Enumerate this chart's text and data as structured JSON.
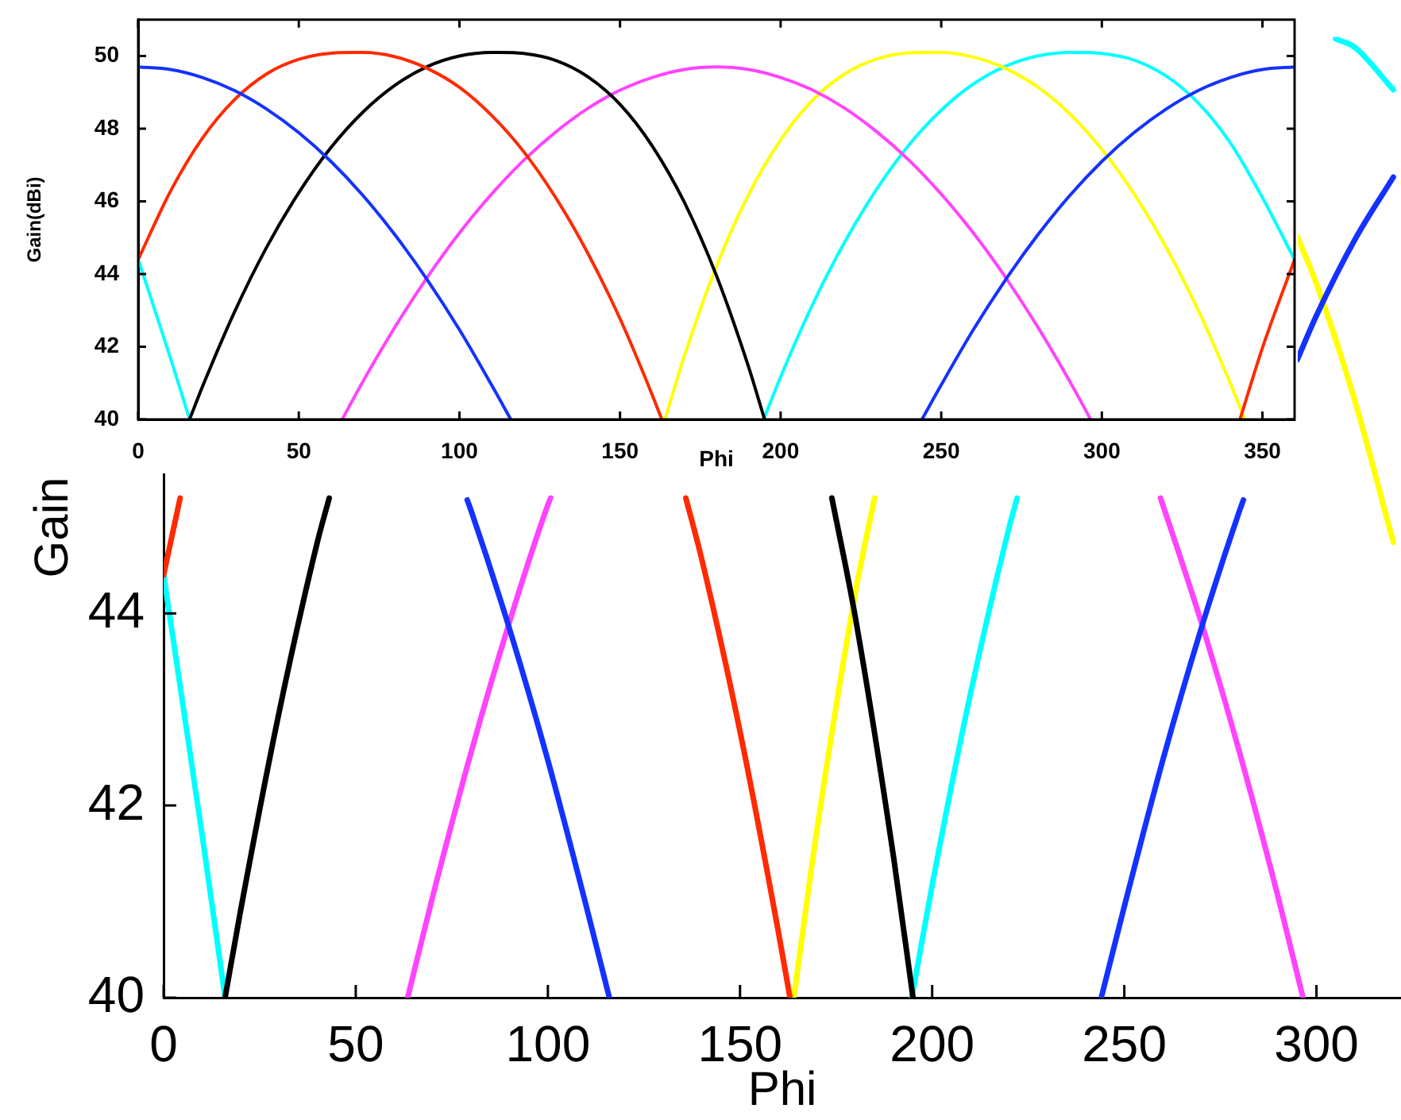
{
  "chart_data": [
    {
      "type": "line",
      "xlabel": "Phi",
      "ylabel": "Gain(dBi)",
      "xlim": [
        0,
        360
      ],
      "ylim": [
        40,
        51
      ],
      "xticks": [
        0,
        50,
        100,
        150,
        200,
        250,
        300,
        350
      ],
      "yticks": [
        40,
        42,
        44,
        46,
        48,
        50
      ],
      "series": [
        {
          "color": "#1432ff",
          "x": [
            0,
            10,
            20,
            30,
            40,
            50,
            60,
            70,
            80,
            90,
            100,
            110,
            116,
            180,
            244,
            250,
            260,
            270,
            280,
            290,
            300,
            310,
            320,
            330,
            340,
            350,
            360
          ],
          "values": [
            49.7,
            49.63,
            49.41,
            49.05,
            48.54,
            47.89,
            47.1,
            46.16,
            45.07,
            43.84,
            42.47,
            40.95,
            40,
            null,
            40,
            40.95,
            42.47,
            43.84,
            45.07,
            46.16,
            47.1,
            47.89,
            48.54,
            49.05,
            49.41,
            49.63,
            49.7
          ]
        },
        {
          "color": "#ff2a00",
          "x": [
            0,
            10,
            20,
            30,
            40,
            50,
            60,
            67,
            70,
            80,
            90,
            100,
            110,
            120,
            130,
            140,
            150,
            160,
            163,
            250,
            343,
            350,
            360
          ],
          "values": [
            44.4,
            46.27,
            47.74,
            48.8,
            49.51,
            49.91,
            50.08,
            50.1,
            50.1,
            49.98,
            49.66,
            49.14,
            48.37,
            47.37,
            46.1,
            44.57,
            42.77,
            40.68,
            40,
            null,
            40,
            41.97,
            44.4
          ]
        },
        {
          "color": "#000000",
          "x": [
            16,
            20,
            30,
            40,
            50,
            60,
            70,
            80,
            90,
            100,
            110,
            112,
            120,
            130,
            140,
            150,
            160,
            170,
            180,
            190,
            195
          ],
          "values": [
            40,
            40.9,
            42.96,
            44.74,
            46.24,
            47.48,
            48.46,
            49.2,
            49.71,
            50,
            50.1,
            50.1,
            50.07,
            49.88,
            49.43,
            48.67,
            47.53,
            45.98,
            43.96,
            41.45,
            40
          ]
        },
        {
          "color": "#ff44ff",
          "x": [
            63.5,
            70,
            80,
            90,
            100,
            110,
            120,
            130,
            140,
            150,
            160,
            170,
            180,
            190,
            200,
            210,
            220,
            230,
            240,
            250,
            260,
            270,
            280,
            290,
            296.5
          ],
          "values": [
            40,
            41.05,
            42.55,
            43.91,
            45.13,
            46.2,
            47.13,
            47.91,
            48.56,
            49.06,
            49.41,
            49.63,
            49.7,
            49.63,
            49.41,
            49.06,
            48.56,
            47.91,
            47.13,
            46.2,
            45.13,
            43.91,
            42.55,
            41.05,
            40
          ]
        },
        {
          "color": "#ffff00",
          "x": [
            164,
            170,
            180,
            190,
            200,
            210,
            220,
            230,
            240,
            246.5,
            250,
            260,
            270,
            280,
            290,
            300,
            310,
            320,
            330,
            340,
            344.5
          ],
          "values": [
            40,
            41.74,
            44.21,
            46.18,
            47.69,
            48.79,
            49.51,
            49.92,
            50.09,
            50.1,
            50.1,
            49.97,
            49.66,
            49.15,
            48.41,
            47.43,
            46.21,
            44.74,
            43,
            40.99,
            40
          ]
        },
        {
          "color": "#00ffff",
          "x": [
            0,
            10,
            16,
            100,
            194.7,
            200,
            210,
            220,
            230,
            240,
            250,
            260,
            270,
            280,
            290,
            292,
            300,
            310,
            320,
            330,
            340,
            350,
            360
          ],
          "values": [
            44.4,
            41.7,
            40,
            null,
            40,
            41.17,
            43.17,
            44.89,
            46.35,
            47.56,
            48.51,
            49.23,
            49.72,
            50,
            50.1,
            50.1,
            50.07,
            49.89,
            49.45,
            48.71,
            47.61,
            46.1,
            44.4
          ]
        }
      ]
    },
    {
      "type": "line",
      "xlabel": "Phi",
      "ylabel": "Gain",
      "xlim": [
        0,
        322
      ],
      "ylim": [
        40,
        50
      ],
      "xticks": [
        0,
        50,
        100,
        150,
        200,
        250,
        300
      ],
      "yticks": [
        40,
        42,
        44
      ],
      "series": [
        {
          "color": "#1432ff",
          "x": [
            79,
            80,
            90,
            100,
            110,
            116,
            180,
            244,
            250,
            260,
            270,
            280,
            281,
            288,
            295,
            300,
            310,
            320
          ],
          "values": [
            45.18,
            45.07,
            43.84,
            42.47,
            40.95,
            40,
            null,
            40,
            40.95,
            42.47,
            43.84,
            45.07,
            45.18,
            null,
            46.64,
            47.1,
            47.89,
            48.54
          ]
        },
        {
          "color": "#ff2a00",
          "x": [
            0,
            4.3,
            70,
            135.9,
            140,
            150,
            160,
            163
          ],
          "values": [
            44.4,
            45.2,
            null,
            45.2,
            44.57,
            42.77,
            40.68,
            40
          ]
        },
        {
          "color": "#000000",
          "x": [
            16,
            20,
            30,
            40,
            43.1,
            100,
            173.9,
            180,
            190,
            195
          ],
          "values": [
            40,
            40.9,
            42.96,
            44.74,
            45.2,
            null,
            45.2,
            43.96,
            41.45,
            40
          ]
        },
        {
          "color": "#ff44ff",
          "x": [
            63.5,
            70,
            80,
            90,
            100,
            100.7,
            180,
            259.4,
            260,
            270,
            280,
            290,
            296.5
          ],
          "values": [
            40,
            41.05,
            42.55,
            43.91,
            45.13,
            45.2,
            null,
            45.2,
            45.13,
            43.91,
            42.55,
            41.05,
            40
          ]
        },
        {
          "color": "#ffff00",
          "x": [
            164,
            170,
            180,
            185,
            250,
            295,
            300,
            310,
            320
          ],
          "values": [
            40,
            41.74,
            44.21,
            45.2,
            null,
            47.92,
            47.43,
            46.21,
            44.74
          ]
        },
        {
          "color": "#00ffff",
          "x": [
            0,
            10,
            16,
            100,
            194.7,
            200,
            210,
            220,
            222.1,
            260,
            305,
            310,
            320
          ],
          "values": [
            44.4,
            41.7,
            40,
            null,
            40,
            41.17,
            43.17,
            44.89,
            45.2,
            null,
            49.98,
            49.89,
            49.45
          ]
        }
      ]
    }
  ]
}
